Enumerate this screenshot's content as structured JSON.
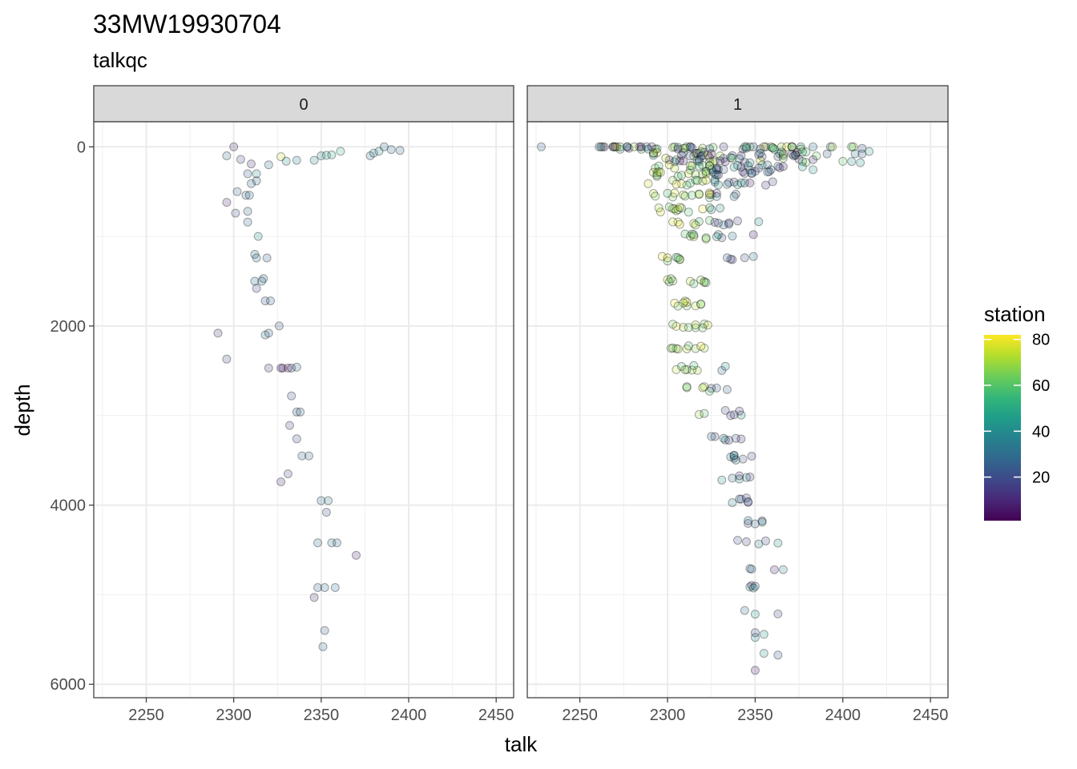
{
  "chart_data": {
    "type": "scatter",
    "title": "33MW19930704",
    "subtitle": "talkqc",
    "xlabel": "talk",
    "ylabel": "depth",
    "xlim": [
      2220,
      2460
    ],
    "ylim": [
      6150,
      -280
    ],
    "y_reversed": true,
    "x_ticks": [
      2250,
      2300,
      2350,
      2400,
      2450
    ],
    "y_ticks": [
      0,
      2000,
      4000,
      6000
    ],
    "grid": true,
    "legend": {
      "title": "station",
      "placement": "right",
      "type": "colorbar",
      "palette": "viridis",
      "range": [
        1,
        82
      ],
      "ticks": [
        20,
        40,
        60,
        80
      ],
      "stops": [
        "#440154",
        "#482878",
        "#3E4989",
        "#31688E",
        "#26828E",
        "#1F9E89",
        "#35B779",
        "#6DCD59",
        "#B4DE2C",
        "#FDE725"
      ]
    },
    "marker": {
      "fill_opacity": 0.22,
      "stroke": "#000000",
      "stroke_opacity": 0.35
    },
    "facets": [
      {
        "label": "0",
        "points": [
          [
            2300,
            0,
            10
          ],
          [
            2296,
            100,
            30
          ],
          [
            2310,
            190,
            12
          ],
          [
            2304,
            140,
            20
          ],
          [
            2327,
            110,
            75
          ],
          [
            2330,
            160,
            40
          ],
          [
            2336,
            150,
            35
          ],
          [
            2320,
            200,
            30
          ],
          [
            2346,
            150,
            38
          ],
          [
            2350,
            100,
            40
          ],
          [
            2353,
            95,
            45
          ],
          [
            2356,
            90,
            50
          ],
          [
            2361,
            50,
            55
          ],
          [
            2378,
            100,
            30
          ],
          [
            2380,
            70,
            35
          ],
          [
            2383,
            50,
            40
          ],
          [
            2386,
            0,
            30
          ],
          [
            2390,
            30,
            28
          ],
          [
            2395,
            40,
            32
          ],
          [
            2308,
            300,
            25
          ],
          [
            2313,
            300,
            40
          ],
          [
            2313,
            380,
            30
          ],
          [
            2310,
            410,
            28
          ],
          [
            2302,
            500,
            25
          ],
          [
            2307,
            540,
            30
          ],
          [
            2309,
            540,
            32
          ],
          [
            2296,
            620,
            10
          ],
          [
            2301,
            740,
            22
          ],
          [
            2308,
            720,
            28
          ],
          [
            2308,
            840,
            30
          ],
          [
            2314,
            1000,
            40
          ],
          [
            2312,
            1200,
            30
          ],
          [
            2313,
            1240,
            32
          ],
          [
            2319,
            1240,
            26
          ],
          [
            2317,
            1470,
            28
          ],
          [
            2312,
            1500,
            30
          ],
          [
            2316,
            1500,
            35
          ],
          [
            2313,
            1580,
            20
          ],
          [
            2318,
            1720,
            25
          ],
          [
            2321,
            1720,
            26
          ],
          [
            2318,
            2100,
            30
          ],
          [
            2320,
            2080,
            28
          ],
          [
            2326,
            2000,
            22
          ],
          [
            2291,
            2080,
            15
          ],
          [
            2296,
            2370,
            20
          ],
          [
            2320,
            2470,
            12
          ],
          [
            2328,
            2470,
            8
          ],
          [
            2331,
            2470,
            5
          ],
          [
            2333,
            2470,
            15
          ],
          [
            2327,
            2470,
            3
          ],
          [
            2336,
            2460,
            30
          ],
          [
            2333,
            2780,
            20
          ],
          [
            2336,
            2960,
            25
          ],
          [
            2338,
            2960,
            30
          ],
          [
            2332,
            3110,
            15
          ],
          [
            2336,
            3260,
            20
          ],
          [
            2339,
            3450,
            25
          ],
          [
            2343,
            3450,
            30
          ],
          [
            2331,
            3650,
            20
          ],
          [
            2327,
            3740,
            10
          ],
          [
            2350,
            3950,
            30
          ],
          [
            2354,
            3950,
            35
          ],
          [
            2353,
            4080,
            20
          ],
          [
            2348,
            4420,
            30
          ],
          [
            2356,
            4420,
            32
          ],
          [
            2359,
            4420,
            28
          ],
          [
            2370,
            4560,
            10
          ],
          [
            2348,
            4920,
            25
          ],
          [
            2352,
            4920,
            30
          ],
          [
            2358,
            4920,
            32
          ],
          [
            2346,
            5030,
            10
          ],
          [
            2352,
            5400,
            25
          ],
          [
            2351,
            5580,
            30
          ]
        ]
      },
      {
        "label": "1",
        "points": []
      }
    ]
  }
}
